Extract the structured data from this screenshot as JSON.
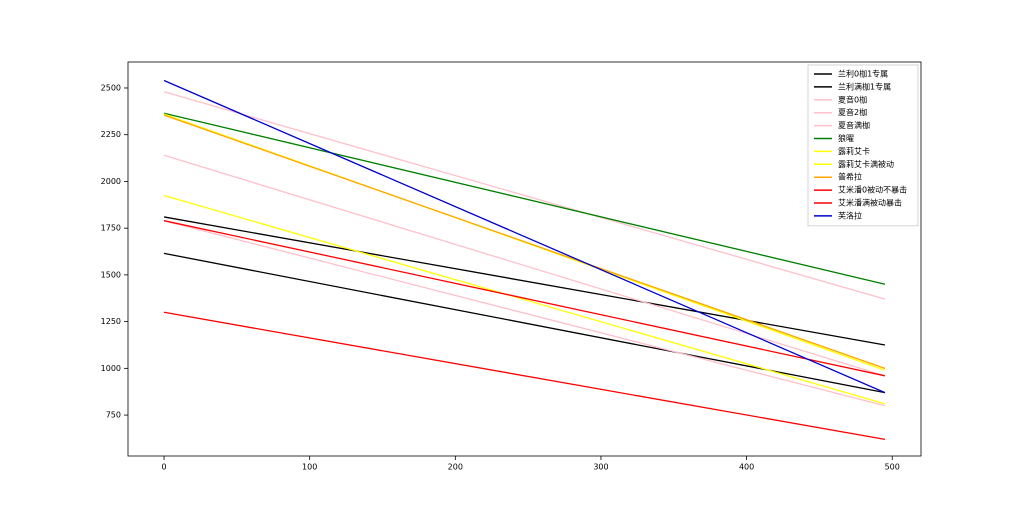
{
  "chart_data": {
    "type": "line",
    "x": [
      0,
      495
    ],
    "series": [
      {
        "name": "兰利0枷1专属",
        "color": "#000000",
        "values": [
          1615,
          870
        ]
      },
      {
        "name": "兰利满枷1专属",
        "color": "#000000",
        "values": [
          1810,
          1125
        ]
      },
      {
        "name": "夏音0枷",
        "color": "#ffc0cb",
        "values": [
          1790,
          800
        ]
      },
      {
        "name": "夏音2枷",
        "color": "#ffc0cb",
        "values": [
          2140,
          960
        ]
      },
      {
        "name": "夏音满枷",
        "color": "#ffc0cb",
        "values": [
          2480,
          1370
        ]
      },
      {
        "name": "狼曜",
        "color": "#008000",
        "values": [
          2365,
          1450
        ]
      },
      {
        "name": "露莉艾卡",
        "color": "#ffff00",
        "values": [
          1925,
          810
        ]
      },
      {
        "name": "露莉艾卡满被动",
        "color": "#ffff00",
        "values": [
          2360,
          990
        ]
      },
      {
        "name": "普希拉",
        "color": "#ffa500",
        "values": [
          2355,
          1000
        ]
      },
      {
        "name": "艾米潘0被动不暴击",
        "color": "#ff0000",
        "values": [
          1300,
          620
        ]
      },
      {
        "name": "艾米潘满被动暴击",
        "color": "#ff0000",
        "values": [
          1790,
          960
        ]
      },
      {
        "name": "芙洛拉",
        "color": "#0000cd",
        "values": [
          2540,
          870
        ]
      }
    ],
    "xlim": [
      -24.75,
      519.75
    ],
    "xticks": [
      0,
      100,
      200,
      300,
      400,
      500
    ],
    "ylim": [
      531,
      2639
    ],
    "yticks": [
      750,
      1000,
      1250,
      1500,
      1750,
      2000,
      2250,
      2500
    ],
    "legend": "upper right"
  }
}
